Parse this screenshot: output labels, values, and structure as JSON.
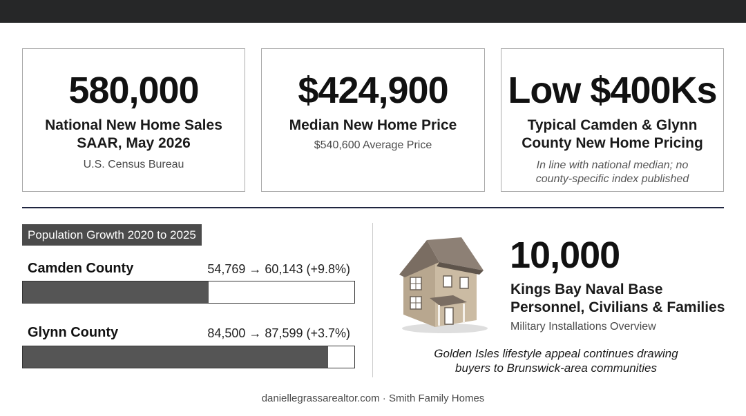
{
  "cards": [
    {
      "big": "580,000",
      "label_line1": "National New Home Sales",
      "label_line2": "SAAR, May 2026",
      "sub": "U.S. Census Bureau"
    },
    {
      "big": "$424,900",
      "label_line1": "Median New Home Price",
      "sub": "$540,600 Average Price"
    },
    {
      "big": "Low $400Ks",
      "label_line1": "Typical Camden & Glynn",
      "label_line2": "County New Home Pricing",
      "sub_line1": "In line with national median; no",
      "sub_line2": "county-specific index published"
    }
  ],
  "population": {
    "title": "Population Growth 2020 to 2025",
    "counties": [
      {
        "name": "Camden County",
        "change": "54,769 → 60,143 (+9.8%)",
        "bar_fill_fraction": 0.56
      },
      {
        "name": "Glynn County",
        "change": "84,500 → 87,599 (+3.7%)",
        "bar_fill_fraction": 0.92
      }
    ]
  },
  "military": {
    "number": "10,000",
    "label_line1": "Kings Bay Naval Base",
    "label_line2": "Personnel, Civilians & Families",
    "source": "Military Installations Overview",
    "icon": "house-icon"
  },
  "lifestyle": {
    "line1": "Golden Isles lifestyle appeal continues drawing",
    "line2": "buyers to Brunswick-area communities"
  },
  "footer": "daniellegrassarealtor.com · Smith Family Homes",
  "colors": {
    "topbar": "#262728",
    "rule": "#1f2540",
    "bar_fill": "#555555",
    "tag_bg": "#4b4b4b"
  }
}
